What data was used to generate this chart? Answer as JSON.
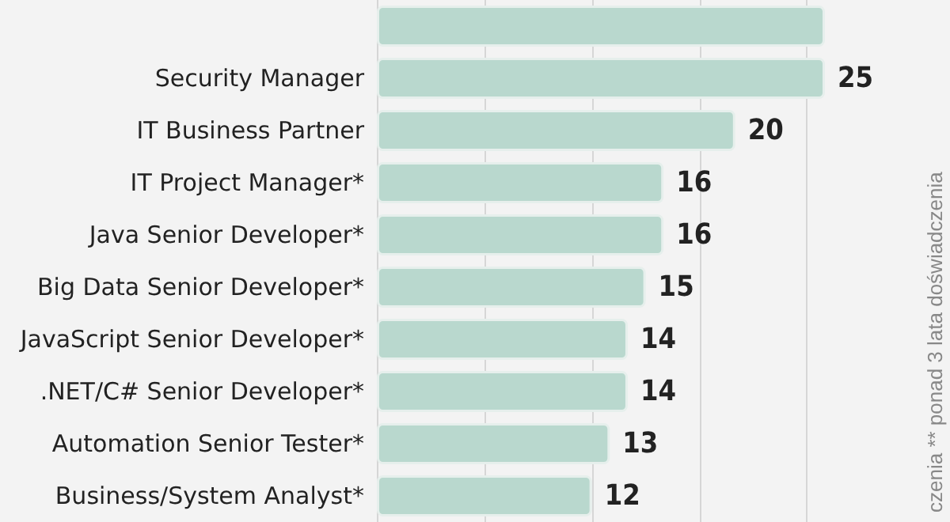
{
  "chart_data": {
    "type": "bar",
    "orientation": "horizontal",
    "categories": [
      null,
      "Security Manager",
      "IT Business Partner",
      "IT Project Manager*",
      "Java Senior Developer*",
      "Big Data Senior Developer*",
      "JavaScript Senior Developer*",
      ".NET/C# Senior Developer*",
      "Automation Senior Tester*",
      "Business/System Analyst*"
    ],
    "values": [
      25,
      25,
      20,
      16,
      16,
      15,
      14,
      14,
      13,
      12
    ],
    "value_labels": [
      null,
      "25",
      "20",
      "16",
      "16",
      "15",
      "14",
      "14",
      "13",
      "12"
    ],
    "color": "#b9d8ce",
    "xticks": [
      {
        "value": 0,
        "label": null
      },
      {
        "value": 6,
        "label": null
      },
      {
        "value": 12,
        "label": null
      },
      {
        "value": 18,
        "label": null
      },
      {
        "value": 24,
        "label": null
      }
    ],
    "grid": "x",
    "tick_labels": "y",
    "annotations": [
      "czenia ** ponad 3 lata doświadczenia"
    ]
  }
}
